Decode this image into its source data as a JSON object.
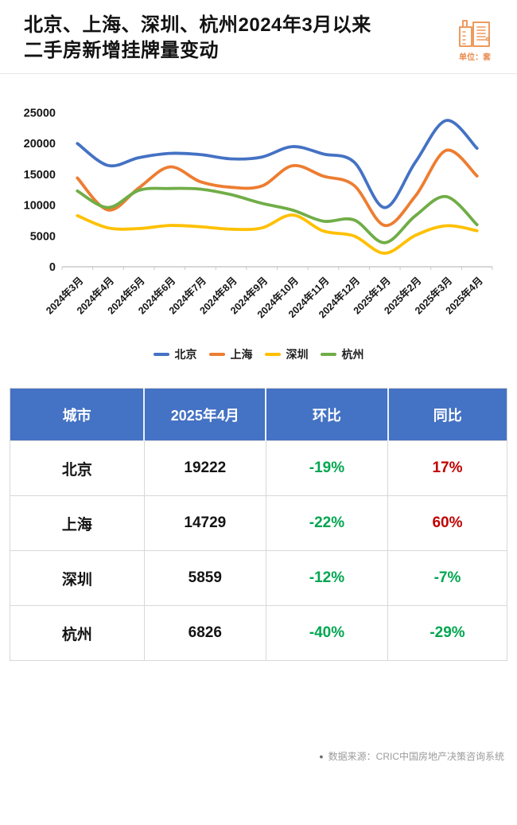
{
  "header": {
    "title_line1": "北京、上海、深圳、杭州2024年3月以来",
    "title_line2": "二手房新增挂牌量变动",
    "unit_label": "单位：套"
  },
  "chart_data": {
    "type": "line",
    "title": "北京、上海、深圳、杭州2024年3月以来二手房新增挂牌量变动",
    "unit": "套",
    "categories": [
      "2024年3月",
      "2024年4月",
      "2024年5月",
      "2024年6月",
      "2024年7月",
      "2024年8月",
      "2024年9月",
      "2024年10月",
      "2024年11月",
      "2024年12月",
      "2025年1月",
      "2025年2月",
      "2025年3月",
      "2025年4月"
    ],
    "series": [
      {
        "name": "北京",
        "color": "#4472C4",
        "values": [
          20000,
          16430,
          17700,
          18400,
          18200,
          17500,
          17800,
          19500,
          18300,
          17000,
          9600,
          17000,
          23731,
          19222
        ]
      },
      {
        "name": "上海",
        "color": "#ED7D31",
        "values": [
          14400,
          9206,
          12800,
          16200,
          13800,
          12900,
          13100,
          16400,
          14700,
          13200,
          6700,
          11500,
          18883,
          14729
        ]
      },
      {
        "name": "深圳",
        "color": "#FFC000",
        "values": [
          8300,
          6300,
          6200,
          6700,
          6500,
          6100,
          6300,
          8400,
          5800,
          5000,
          2200,
          5100,
          6658,
          5859
        ]
      },
      {
        "name": "杭州",
        "color": "#70AD47",
        "values": [
          12300,
          9615,
          12400,
          12700,
          12600,
          11700,
          10300,
          9200,
          7400,
          7600,
          3900,
          8300,
          11377,
          6826
        ]
      }
    ],
    "ylim": [
      0,
      25000
    ],
    "yticks": [
      0,
      5000,
      10000,
      15000,
      20000,
      25000
    ],
    "grid": false,
    "legend_position": "bottom"
  },
  "table": {
    "headers": [
      "城市",
      "2025年4月",
      "环比",
      "同比"
    ],
    "rows": [
      {
        "city": "北京",
        "value": "19222",
        "mom": "-19%",
        "mom_color": "green",
        "yoy": "17%",
        "yoy_color": "red"
      },
      {
        "city": "上海",
        "value": "14729",
        "mom": "-22%",
        "mom_color": "green",
        "yoy": "60%",
        "yoy_color": "red"
      },
      {
        "city": "深圳",
        "value": "5859",
        "mom": "-12%",
        "mom_color": "green",
        "yoy": "-7%",
        "yoy_color": "green"
      },
      {
        "city": "杭州",
        "value": "6826",
        "mom": "-40%",
        "mom_color": "green",
        "yoy": "-29%",
        "yoy_color": "green"
      }
    ],
    "green": "#00A650",
    "red": "#C00000",
    "header_bg": "#4472C4"
  },
  "footer": {
    "bullet": "●",
    "source": "数据来源：CRIC中国房地产决策咨询系统"
  }
}
